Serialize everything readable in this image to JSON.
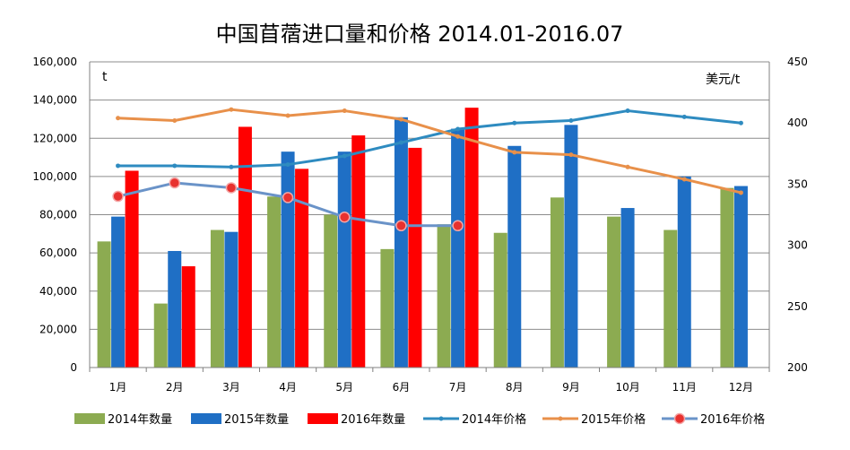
{
  "chart_data": {
    "type": "bar",
    "title": "中国苜蓿进口量和价格 2014.01-2016.07",
    "left_axis_unit": "t",
    "right_axis_unit": "美元/t",
    "categories": [
      "1月",
      "2月",
      "3月",
      "4月",
      "5月",
      "6月",
      "7月",
      "8月",
      "9月",
      "10月",
      "11月",
      "12月"
    ],
    "ylim_left": [
      0,
      160000
    ],
    "ylim_right": [
      200,
      450
    ],
    "left_ticks": [
      0,
      20000,
      40000,
      60000,
      80000,
      100000,
      120000,
      140000,
      160000
    ],
    "left_tick_labels": [
      "0",
      "20,000",
      "40,000",
      "60,000",
      "80,000",
      "100,000",
      "120,000",
      "140,000",
      "160,000"
    ],
    "right_ticks": [
      200,
      250,
      300,
      350,
      400,
      450
    ],
    "right_tick_labels": [
      "200",
      "250",
      "300",
      "350",
      "400",
      "450"
    ],
    "bar_series": [
      {
        "name": "2014年数量",
        "color": "#8CAB51",
        "values": [
          66000,
          33500,
          72000,
          89500,
          80000,
          62000,
          75000,
          70500,
          89000,
          79000,
          72000,
          94000
        ]
      },
      {
        "name": "2015年数量",
        "color": "#1F6FC5",
        "values": [
          79000,
          61000,
          71000,
          113000,
          113000,
          131000,
          125000,
          116000,
          127000,
          83500,
          100000,
          95000
        ]
      },
      {
        "name": "2016年数量",
        "color": "#FF0000",
        "values": [
          103000,
          53000,
          126000,
          104000,
          121500,
          115000,
          136000,
          null,
          null,
          null,
          null,
          null
        ]
      }
    ],
    "line_series": [
      {
        "name": "2014年价格",
        "color": "#2E8BC0",
        "marker": "small",
        "values": [
          365,
          365,
          364,
          366,
          373,
          384,
          395,
          400,
          402,
          410,
          405,
          400
        ]
      },
      {
        "name": "2015年价格",
        "color": "#E8904A",
        "marker": "small",
        "values": [
          404,
          402,
          411,
          406,
          410,
          403,
          389,
          376,
          374,
          364,
          354,
          343
        ]
      },
      {
        "name": "2016年价格",
        "color": "#6A93C8",
        "marker": "large",
        "marker_color": "#E8312F",
        "values": [
          340,
          351,
          347,
          339,
          323,
          316,
          316,
          null,
          null,
          null,
          null,
          null
        ]
      }
    ],
    "legend": [
      "2014年数量",
      "2015年数量",
      "2016年数量",
      "2014年价格",
      "2015年价格",
      "2016年价格"
    ],
    "legend_position": "bottom",
    "grid": true
  }
}
